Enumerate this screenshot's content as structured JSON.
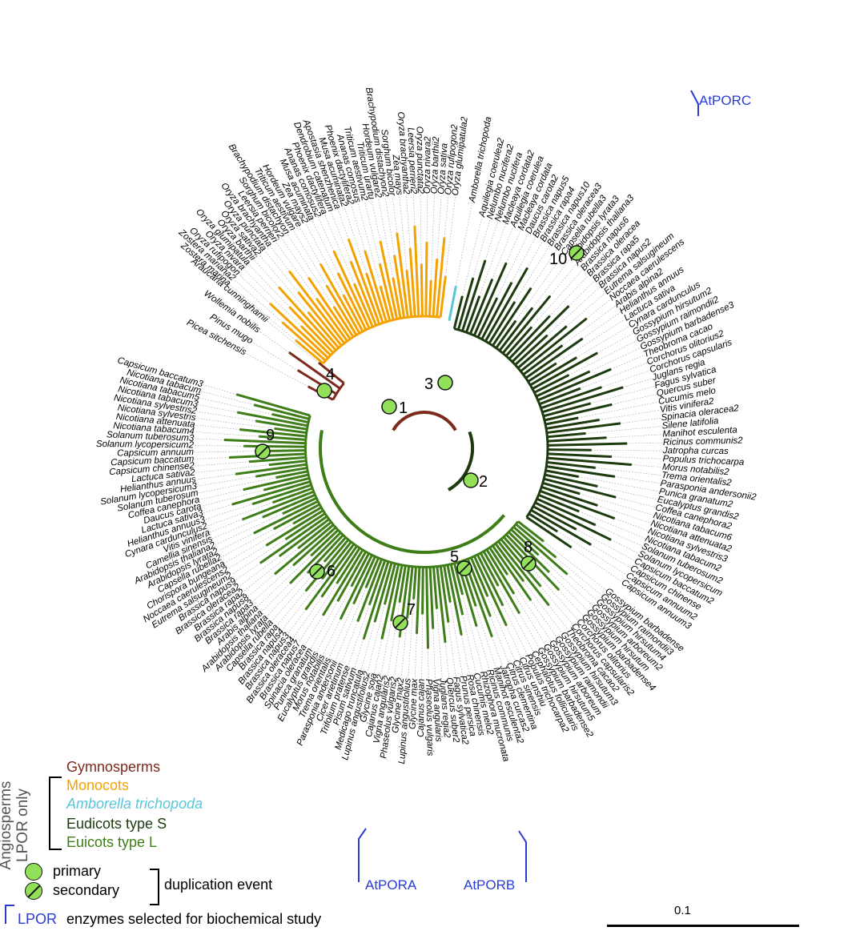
{
  "colors": {
    "gymnosperms": "#7b2a1d",
    "monocots": "#f4a200",
    "amborella": "#5bc6d8",
    "eudicots_s": "#1d3b0e",
    "eudicots_l": "#3f7d18",
    "selected": "#2a3bd6",
    "duplication_fill": "#92e05a"
  },
  "labels": {
    "gymnosperms": [
      "Picea sitchensis",
      "Pinus mugo",
      "Wollemia nobilis",
      "Araucaria cunninghamii"
    ],
    "monocots": [
      "Zostera marina",
      "Zostera mariana2",
      "Oryza rufipogon",
      "Oryza nivara",
      "Oryza glumipatula",
      "Oryza barthii",
      "Oryza sativa2",
      "Oryza punctata",
      "Oryza brachyantha",
      "Leersia perrieri",
      "Sorghum bicolor2",
      "Brachypodium distachyon",
      "Triticum aestivum",
      "Hordeum vulgare",
      "Zea mays2",
      "Musa acuminata",
      "Ananas comosus2",
      "Phoenix dactylifera",
      "Dendrobium catenatum",
      "Apostasia shenzhenica",
      "Musa acuminata2",
      "Phoenix dactylifera2",
      "Ananas comosus",
      "Triticum aestivum2",
      "Triticum urartu",
      "Hordeum vulgare2",
      "Brachypodium distachyon2",
      "Sorghum bicolor",
      "Zea mays",
      "Oryza brachyantha2",
      "Leersia perrieri2",
      "Oryza punctata2",
      "Oryza nivara2",
      "Oryza barthii2",
      "Oryza sativa",
      "Oryza rufipogon2",
      "Oryza glumipatula2"
    ],
    "amborella": [
      "Amborella trichopoda"
    ],
    "eudicots_s": [
      "Aquilegia coerulea2",
      "Nelumbo nucifera2",
      "Nelumbo nucifera",
      "Macleaya cordata2",
      "Aquilegia coerulea",
      "Macleaya cordata",
      "Daucus carota2",
      "Brassica napus5",
      "Brassica rapa4",
      "Brassica napus10",
      "Brassica oleracea3",
      "Capsella rubella3",
      "Arabidopsis lyrata3",
      "Arabidopsis thaliana3",
      "Brassica napus6",
      "Brassica oleracea",
      "Brassica rapa5",
      "Brassica napus2",
      "Eutrema salsugineum",
      "Noccaea caerulescens",
      "Arabis alpina2",
      "Helianthus annuus",
      "Lactuca sativa",
      "Cynara cardunculus",
      "Gossypium hirsutum2",
      "Gossypium raimondii2",
      "Gossypium barbadense3",
      "Theobroma cacao",
      "Corchorus olitorius2",
      "Corchorus capsularis",
      "Juglans regia",
      "Fagus sylvatica",
      "Quercus suber",
      "Cucumis melo",
      "Vitis vinifera2",
      "Spinacia oleracea2",
      "Silene latifolia",
      "Manihot esculenta",
      "Ricinus communis2",
      "Jatropha curcas",
      "Populus trichocarpa",
      "Morus notabilis2",
      "Trema orientalis2",
      "Parasponia andersonii2",
      "Punica granatum2",
      "Eucalyptus grandis2",
      "Coffea canephora2",
      "Nicotiana tabacum6",
      "Nicotiana attenuata2",
      "Nicotiana sylvestris3",
      "Nicotiana tabacum2",
      "Solanum tuberosum2",
      "Solanum lycopersicum",
      "Capsicum baccatum2",
      "Capsicum chinense",
      "Capsicum annuum2",
      "Capsicum annuum3"
    ],
    "eudicots_l": [
      "Gossypium barbadense",
      "Gossypium raimondii3",
      "Gossypium hirsutum4",
      "Gossypium arboreum2",
      "Gossypium hirsutum",
      "Gossypium barbadense4",
      "Corchorus olitorius",
      "Corchorus capsularis2",
      "Theobroma cacao2",
      "Gossypium hirsutum3",
      "Gossypium raimondii",
      "Gossypium arboreum",
      "Gossypium hirsutum5",
      "Gossypium barbadense2",
      "Cephalotus follicularis",
      "Populus trichocarpa2",
      "Citrus unshiu",
      "Citrus sinensis",
      "Citrus clementina",
      "Jatropha curcas2",
      "Manihot esculenta2",
      "Ricinus communis",
      "Rhizophora mucronata",
      "Cucumis melo2",
      "Rosa chinensis",
      "Prunus persica",
      "Fagus sylvatica2",
      "Quercus suber2",
      "Juglans regia2",
      "Vigna angularis",
      "Phaseolus vulgaris",
      "Cajanus cajan",
      "Glycine max",
      "Lupinus angustifolius",
      "Glycine max2",
      "Phaseolus vulgaris2",
      "Vigna angularis2",
      "Cajanus cajan2",
      "Glycine soja",
      "Lupinus angustifolius2",
      "Medicago truncatula",
      "Pisum sativum",
      "Trifolium pratense",
      "Cicer arietinum",
      "Parasponia andersonii",
      "Trema orientalis",
      "Morus notabilis",
      "Eucalyptus grandis",
      "Punica granatum",
      "Spinacia oleracea",
      "Brassica napus7",
      "Brassica oleracea4",
      "Brassica napus3",
      "Brassica napus4",
      "Brassica rapa",
      "Capsella rubella",
      "Arabidopsis lyrata",
      "Arabidopsis thaliana",
      "Arabis alpina",
      "Brassica rapa3",
      "Brassica napus8",
      "Brassica rapa2",
      "Brassica oleracea2",
      "Brassica napus9",
      "Eutrema salsugineum2",
      "Noccaea caerulescens2",
      "Chorispora bungeana",
      "Capsella rubella2",
      "Arabidopsis lyrata2",
      "Arabidopsis thaliana2",
      "Camellia sinensis",
      "Vitis vinifera",
      "Cynara cardunculus2",
      "Helianthus annuus3",
      "Lactuca sativa3",
      "Daucus carota",
      "Coffea canephora",
      "Solanum tuberosum",
      "Solanum lycopersicum3",
      "Helianthus annuus",
      "Lactuca sativa2",
      "Capsicum chinense2",
      "Capsicum baccatum",
      "Capsicum annuum",
      "Solanum lycopersicum2",
      "Solanum tuberosum3",
      "Nicotiana tabacum4",
      "Nicotiana attenuata",
      "Nicotiana sylvestris",
      "Nicotiana sylvestris2",
      "Nicotiana tabacum3",
      "Nicotiana tabacum5",
      "Nicotiana tabacum",
      "Capsicum baccatum3"
    ]
  },
  "duplication_events": [
    {
      "id": "1",
      "kind": "primary"
    },
    {
      "id": "2",
      "kind": "primary"
    },
    {
      "id": "3",
      "kind": "primary"
    },
    {
      "id": "4",
      "kind": "primary"
    },
    {
      "id": "5",
      "kind": "secondary"
    },
    {
      "id": "6",
      "kind": "secondary"
    },
    {
      "id": "7",
      "kind": "secondary"
    },
    {
      "id": "8",
      "kind": "secondary"
    },
    {
      "id": "9",
      "kind": "secondary"
    },
    {
      "id": "10",
      "kind": "secondary"
    }
  ],
  "selected_enzymes": {
    "porc": "AtPORC",
    "pora": "AtPORA",
    "porb": "AtPORB"
  },
  "legend": {
    "vertical_label": "Angiosperms LPOR only",
    "gymnosperms": "Gymnosperms",
    "monocots": "Monocots",
    "amborella": "Amborella trichopoda",
    "eudicots_s": "Eudicots type S",
    "eudicots_l": "Euicots type L",
    "primary": "primary",
    "secondary": "secondary",
    "duplication_event": "duplication event",
    "lpor": "LPOR",
    "lpor_desc": "enzymes selected for biochemical study"
  },
  "scale_bar": {
    "label": "0.1"
  }
}
